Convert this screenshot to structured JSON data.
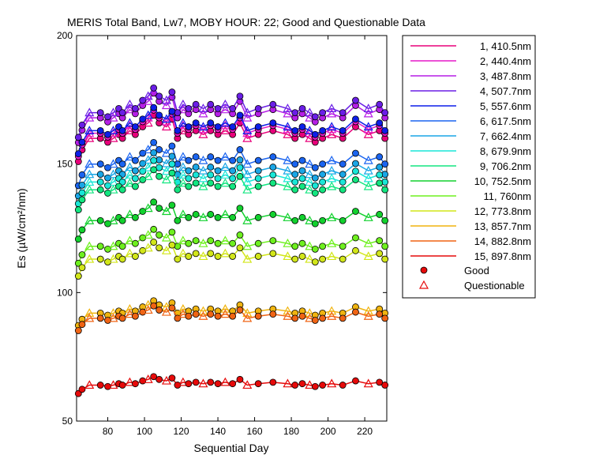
{
  "chart_data": {
    "type": "line",
    "title": "MERIS Total Band,  Lw7, MOBY HOUR: 22;  Good and Questionable Data",
    "xlabel": "Sequential Day",
    "ylabel": "Es (µW/cm²/nm)",
    "xlim": [
      63,
      232
    ],
    "ylim": [
      50,
      200
    ],
    "x_ticks": [
      80,
      100,
      120,
      140,
      160,
      180,
      200,
      220
    ],
    "y_ticks": [
      50,
      100,
      150,
      200
    ],
    "x_tick_labels": [
      "80",
      "100",
      "120",
      "140",
      "160",
      "180",
      "200",
      "220"
    ],
    "y_tick_labels": [
      "50",
      "100",
      "150",
      "200"
    ],
    "grid": false,
    "legend_position": "right-outside",
    "x": [
      64,
      66,
      70,
      76,
      80,
      83,
      86,
      88,
      92,
      95,
      99,
      102,
      105,
      108,
      112,
      115,
      118,
      121,
      124,
      128,
      132,
      136,
      140,
      144,
      148,
      152,
      156,
      162,
      170,
      178,
      182,
      186,
      190,
      193,
      197,
      202,
      208,
      215,
      222,
      228,
      231
    ],
    "pattern": [
      -6,
      -3,
      0,
      0,
      -1,
      0,
      1,
      0,
      2,
      1,
      3,
      4,
      6,
      4,
      3,
      5,
      0,
      2,
      1,
      2,
      1,
      2,
      1,
      2,
      1,
      4,
      0,
      1,
      2,
      1,
      0,
      1,
      0,
      -1,
      0,
      1,
      0,
      3,
      1,
      2,
      0
    ],
    "series": [
      {
        "name": "1, 410.5nm",
        "color": "#e8007a",
        "base": 160,
        "scale": 1.5
      },
      {
        "name": "2, 440.4nm",
        "color": "#e619c8",
        "base": 162,
        "scale": 1.5
      },
      {
        "name": "3, 487.8nm",
        "color": "#b51fe6",
        "base": 168,
        "scale": 1.6
      },
      {
        "name": "4, 507.7nm",
        "color": "#6a1ee6",
        "base": 170,
        "scale": 1.6
      },
      {
        "name": "5, 557.6nm",
        "color": "#0d1fe8",
        "base": 163,
        "scale": 1.5
      },
      {
        "name": "6, 617.5nm",
        "color": "#1a64f0",
        "base": 150,
        "scale": 1.4
      },
      {
        "name": "7, 662.4nm",
        "color": "#1aa6e6",
        "base": 146,
        "scale": 1.4
      },
      {
        "name": "8, 679.9nm",
        "color": "#19e6d7",
        "base": 143,
        "scale": 1.4
      },
      {
        "name": "9, 706.2nm",
        "color": "#12e680",
        "base": 140,
        "scale": 1.3
      },
      {
        "name": "10, 752.5nm",
        "color": "#12d12e",
        "base": 128,
        "scale": 1.2
      },
      {
        "name": "11,   760nm",
        "color": "#6ef01e",
        "base": 118,
        "scale": 1.1
      },
      {
        "name": "12, 773.8nm",
        "color": "#d2e619",
        "base": 113,
        "scale": 1.1
      },
      {
        "name": "13, 857.7nm",
        "color": "#f0b40f",
        "base": 92,
        "scale": 0.8
      },
      {
        "name": "14, 882.8nm",
        "color": "#f06414",
        "base": 90,
        "scale": 0.8
      },
      {
        "name": "15, 897.8nm",
        "color": "#e60a0a",
        "base": 64,
        "scale": 0.55
      }
    ],
    "legend_markers": {
      "good": "Good",
      "questionable": "Questionable"
    }
  }
}
